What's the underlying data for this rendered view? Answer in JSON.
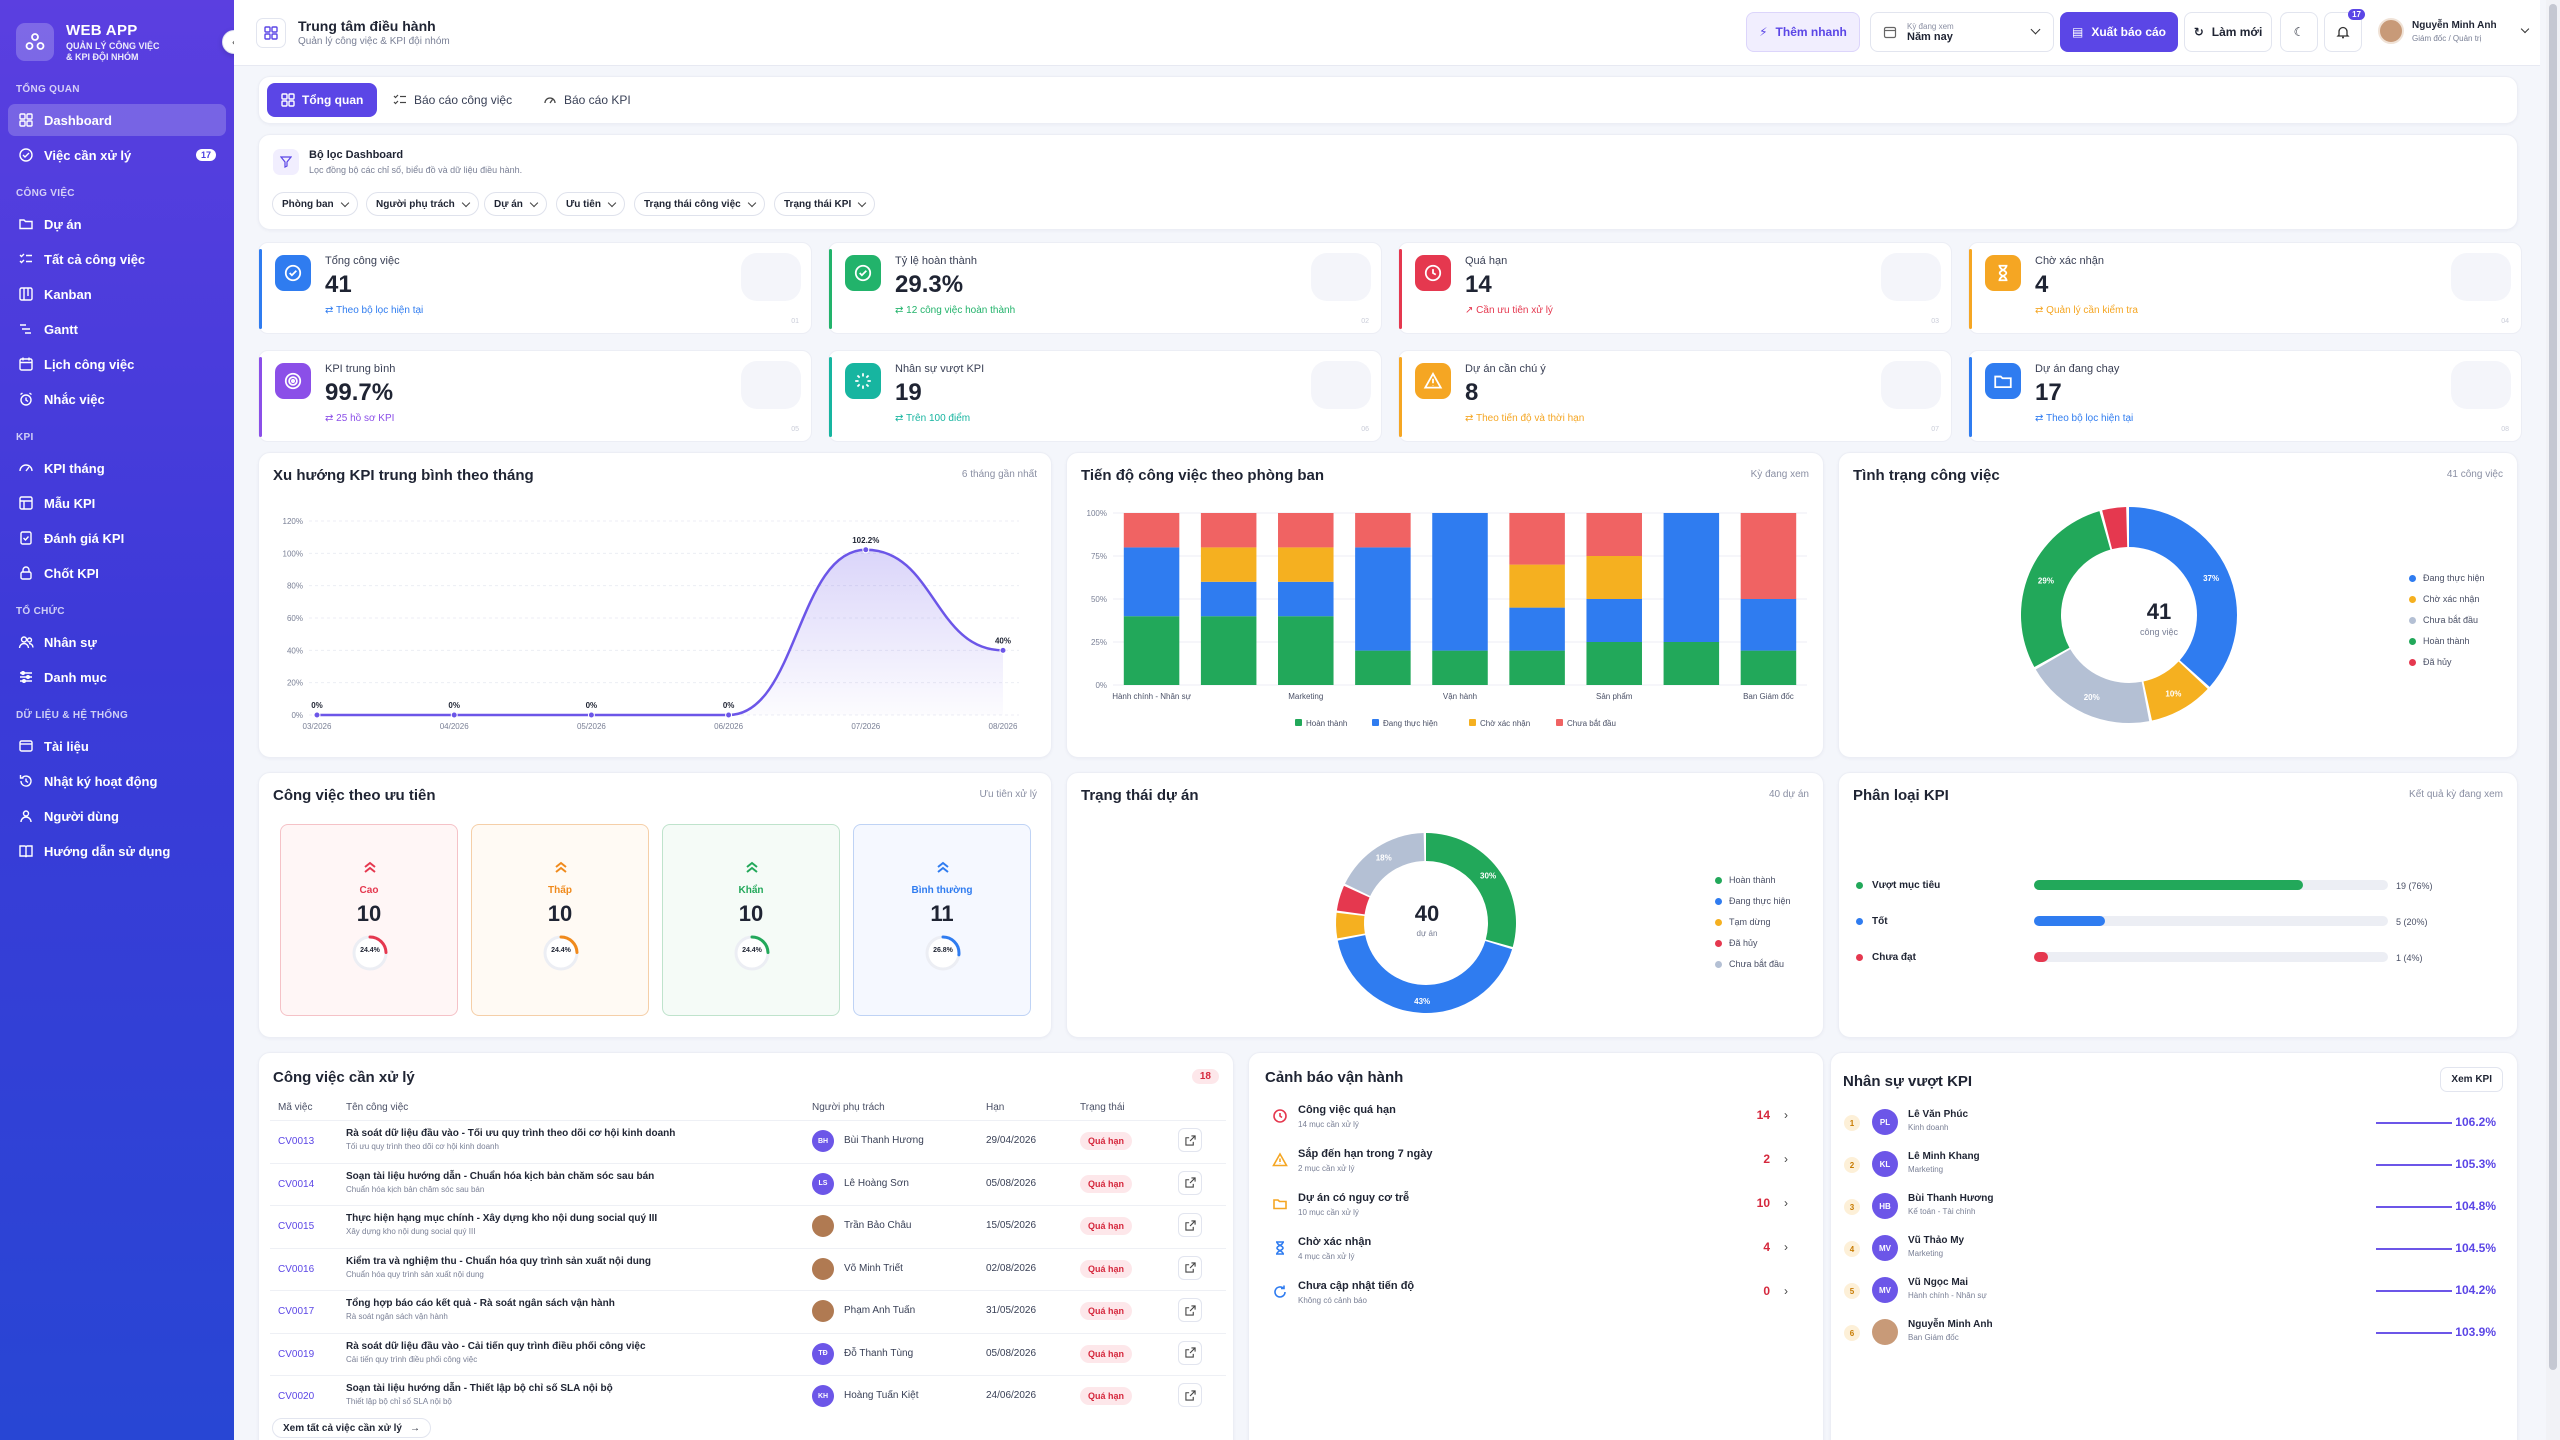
{
  "app": {
    "name": "WEB APP",
    "tagline": "QUẢN LÝ CÔNG VIỆC\n& KPI ĐỘI NHÓM"
  },
  "sidebar": {
    "sections": [
      {
        "title": "TỔNG QUAN",
        "items": [
          {
            "label": "Dashboard",
            "icon": "grid-icon",
            "active": true
          },
          {
            "label": "Việc cần xử lý",
            "icon": "check-circle-icon",
            "badge": "17"
          }
        ]
      },
      {
        "title": "CÔNG VIỆC",
        "items": [
          {
            "label": "Dự án",
            "icon": "folder-icon"
          },
          {
            "label": "Tất cả công việc",
            "icon": "list-check-icon"
          },
          {
            "label": "Kanban",
            "icon": "kanban-icon"
          },
          {
            "label": "Gantt",
            "icon": "gantt-icon"
          },
          {
            "label": "Lịch công việc",
            "icon": "calendar-icon"
          },
          {
            "label": "Nhắc việc",
            "icon": "alarm-icon"
          }
        ]
      },
      {
        "title": "KPI",
        "items": [
          {
            "label": "KPI tháng",
            "icon": "gauge-icon"
          },
          {
            "label": "Mẫu KPI",
            "icon": "template-icon"
          },
          {
            "label": "Đánh giá KPI",
            "icon": "evaluate-icon"
          },
          {
            "label": "Chốt KPI",
            "icon": "lock-icon"
          }
        ]
      },
      {
        "title": "TỔ CHỨC",
        "items": [
          {
            "label": "Nhân sự",
            "icon": "users-icon"
          },
          {
            "label": "Danh mục",
            "icon": "sliders-icon"
          }
        ]
      },
      {
        "title": "DỮ LIỆU & HỆ THỐNG",
        "items": [
          {
            "label": "Tài liệu",
            "icon": "document-icon"
          },
          {
            "label": "Nhật ký hoạt động",
            "icon": "history-icon"
          },
          {
            "label": "Người dùng",
            "icon": "user-group-icon"
          },
          {
            "label": "Hướng dẫn sử dụng",
            "icon": "book-icon"
          }
        ]
      }
    ]
  },
  "header": {
    "title": "Trung tâm điều hành",
    "subtitle": "Quản lý công việc & KPI đội nhóm",
    "quick_label": "Thêm nhanh",
    "period_caption": "Kỳ đang xem",
    "period_value": "Năm nay",
    "export_label": "Xuất báo cáo",
    "refresh_label": "Làm mới",
    "notif_count": "17",
    "user_name": "Nguyễn Minh Anh",
    "user_role": "Giám đốc / Quản trị"
  },
  "tabs": [
    "Tổng quan",
    "Báo cáo công việc",
    "Báo cáo KPI"
  ],
  "filters": {
    "title": "Bộ lọc Dashboard",
    "subtitle": "Lọc đồng bộ các chỉ số, biểu đồ và dữ liệu điều hành.",
    "chips": [
      "Phòng ban",
      "Người phụ trách",
      "Dự án",
      "Ưu tiên",
      "Trạng thái công việc",
      "Trạng thái KPI"
    ]
  },
  "stats": [
    {
      "label": "Tổng công việc",
      "value": "41",
      "sub": "Theo bộ lọc hiện tại",
      "num": "01",
      "color": "#2f7cf0",
      "icon": "check-badge-icon"
    },
    {
      "label": "Tỷ lệ hoàn thành",
      "value": "29.3%",
      "sub": "12 công việc hoàn thành",
      "num": "02",
      "color": "#22b36b",
      "icon": "check-circle-icon"
    },
    {
      "label": "Quá hạn",
      "value": "14",
      "sub": "Cần ưu tiên xử lý",
      "num": "03",
      "color": "#e5384f",
      "icon": "clock-icon"
    },
    {
      "label": "Chờ xác nhận",
      "value": "4",
      "sub": "Quản lý cần kiểm tra",
      "num": "04",
      "color": "#f5a623",
      "icon": "hourglass-icon"
    },
    {
      "label": "KPI trung bình",
      "value": "99.7%",
      "sub": "25 hồ sơ KPI",
      "num": "05",
      "color": "#8b4fe8",
      "icon": "target-icon"
    },
    {
      "label": "Nhân sự vượt KPI",
      "value": "19",
      "sub": "Trên 100 điểm",
      "num": "06",
      "color": "#17b5a0",
      "icon": "sparkle-icon"
    },
    {
      "label": "Dự án cần chú ý",
      "value": "8",
      "sub": "Theo tiến độ và thời hạn",
      "num": "07",
      "color": "#f5a623",
      "icon": "warning-icon"
    },
    {
      "label": "Dự án đang chạy",
      "value": "17",
      "sub": "Theo bộ lọc hiện tại",
      "num": "08",
      "color": "#2f7cf0",
      "icon": "folder-open-icon"
    }
  ],
  "kpi_trend": {
    "title": "Xu hướng KPI trung bình theo tháng",
    "note": "6 tháng gần nhất",
    "chart_data": {
      "type": "area",
      "x": [
        "03/2026",
        "04/2026",
        "05/2026",
        "06/2026",
        "07/2026",
        "08/2026"
      ],
      "values": [
        0,
        0,
        0,
        0,
        102.2,
        40
      ],
      "point_labels": [
        "0%",
        "0%",
        "0%",
        "0%",
        "102.2%",
        "40%"
      ],
      "yticks": [
        "0%",
        "20%",
        "40%",
        "60%",
        "80%",
        "100%",
        "120%"
      ],
      "ylim": [
        0,
        120
      ],
      "color": "#6c56e8"
    }
  },
  "dept_progress": {
    "title": "Tiến độ công việc theo phòng ban",
    "note": "Kỳ đang xem",
    "chart_data": {
      "type": "bar",
      "stacked": true,
      "percent": true,
      "categories": [
        "Hành chính - Nhân sự",
        "",
        "Marketing",
        "",
        "Vận hành",
        "",
        "Sản phẩm",
        "",
        "Ban Giám đốc"
      ],
      "yticks": [
        "0%",
        "25%",
        "50%",
        "75%",
        "100%"
      ],
      "series": [
        {
          "name": "Hoàn thành",
          "color": "#22a85a",
          "values": [
            40,
            40,
            40,
            20,
            20,
            20,
            25,
            25,
            20
          ]
        },
        {
          "name": "Đang thực hiện",
          "color": "#2f7cf0",
          "values": [
            40,
            20,
            20,
            60,
            80,
            25,
            25,
            75,
            30
          ]
        },
        {
          "name": "Chờ xác nhận",
          "color": "#f5b020",
          "values": [
            0,
            20,
            20,
            0,
            0,
            25,
            25,
            0,
            0
          ]
        },
        {
          "name": "Chưa bắt đầu",
          "color": "#f06363",
          "values": [
            20,
            20,
            20,
            20,
            0,
            30,
            25,
            0,
            50
          ]
        }
      ]
    }
  },
  "task_status": {
    "title": "Tình trạng công việc",
    "note": "41 công việc",
    "center_value": "41",
    "center_label": "công việc",
    "chart_data": {
      "type": "pie",
      "labels": [
        "Đang thực hiện",
        "Chờ xác nhận",
        "Chưa bắt đầu",
        "Hoàn thành",
        "Đã hủy"
      ],
      "values": [
        37,
        10,
        20,
        29,
        4
      ],
      "slice_labels": [
        "37%",
        "10%",
        "20%",
        "29%",
        ""
      ],
      "colors": [
        "#2f7cf0",
        "#f5b020",
        "#b4c0d4",
        "#22a85a",
        "#e5384f"
      ]
    }
  },
  "priority": {
    "title": "Công việc theo ưu tiên",
    "note": "Ưu tiên xử lý",
    "items": [
      {
        "label": "Cao",
        "value": "10",
        "pct": "24.4%",
        "ratio": 0.244,
        "color": "#e5384f",
        "bg": "#fff6f6",
        "border": "#f5c2c7",
        "icon": "double-chevron-up-icon"
      },
      {
        "label": "Thấp",
        "value": "10",
        "pct": "24.4%",
        "ratio": 0.244,
        "color": "#f08a1c",
        "bg": "#fffaf4",
        "border": "#f5cfa8",
        "icon": "double-chevron-up-icon"
      },
      {
        "label": "Khẩn",
        "value": "10",
        "pct": "24.4%",
        "ratio": 0.244,
        "color": "#22a85a",
        "bg": "#f5fbf7",
        "border": "#bfe3cc",
        "icon": "double-chevron-up-icon"
      },
      {
        "label": "Bình thường",
        "value": "11",
        "pct": "26.8%",
        "ratio": 0.268,
        "color": "#2f7cf0",
        "bg": "#f5f8ff",
        "border": "#bfd3f5",
        "icon": "double-chevron-up-icon"
      }
    ]
  },
  "project_status": {
    "title": "Trạng thái dự án",
    "note": "40 dự án",
    "center_value": "40",
    "center_label": "dự án",
    "chart_data": {
      "type": "pie",
      "labels": [
        "Hoàn thành",
        "Đang thực hiện",
        "Tạm dừng",
        "Đã hủy",
        "Chưa bắt đầu"
      ],
      "values": [
        30,
        43,
        5,
        5,
        18
      ],
      "slice_labels": [
        "30%",
        "43%",
        "",
        "",
        "18%"
      ],
      "colors": [
        "#22a85a",
        "#2f7cf0",
        "#f5b020",
        "#e5384f",
        "#b4c0d4"
      ]
    }
  },
  "kpi_class": {
    "title": "Phân loại KPI",
    "note": "Kết quả kỳ đang xem",
    "items": [
      {
        "label": "Vượt mục tiêu",
        "count": "19 (76%)",
        "ratio": 0.76,
        "color": "#22a85a"
      },
      {
        "label": "Tốt",
        "count": "5 (20%)",
        "ratio": 0.2,
        "color": "#2f7cf0"
      },
      {
        "label": "Chưa đạt",
        "count": "1 (4%)",
        "ratio": 0.04,
        "color": "#e5384f"
      }
    ]
  },
  "pending": {
    "title": "Công việc cần xử lý",
    "count": "18",
    "headers": [
      "Mã việc",
      "Tên công việc",
      "Người phụ trách",
      "Hạn",
      "Trạng thái"
    ],
    "rows": [
      {
        "code": "CV0013",
        "name": "Rà soát dữ liệu đầu vào - Tối ưu quy trình theo dõi cơ hội kinh doanh",
        "desc": "Tối ưu quy trình theo dõi cơ hội kinh doanh",
        "initials": "BH",
        "person": "Bùi Thanh Hương",
        "due": "29/04/2026",
        "status": "Quá hạn",
        "avatar_color": "#6c56e8"
      },
      {
        "code": "CV0014",
        "name": "Soạn tài liệu hướng dẫn - Chuẩn hóa kịch bản chăm sóc sau bán",
        "desc": "Chuẩn hóa kịch bản chăm sóc sau bán",
        "initials": "LS",
        "person": "Lê Hoàng Sơn",
        "due": "05/08/2026",
        "status": "Quá hạn",
        "avatar_color": "#6c56e8"
      },
      {
        "code": "CV0015",
        "name": "Thực hiện hạng mục chính - Xây dựng kho nội dung social quý III",
        "desc": "Xây dựng kho nội dung social quý III",
        "initials": "",
        "person": "Trần Bảo Châu",
        "due": "15/05/2026",
        "status": "Quá hạn",
        "avatar_color": "#b07a52"
      },
      {
        "code": "CV0016",
        "name": "Kiểm tra và nghiệm thu - Chuẩn hóa quy trình sản xuất nội dung",
        "desc": "Chuẩn hóa quy trình sản xuất nội dung",
        "initials": "",
        "person": "Võ Minh Triết",
        "due": "02/08/2026",
        "status": "Quá hạn",
        "avatar_color": "#b07a52"
      },
      {
        "code": "CV0017",
        "name": "Tổng hợp báo cáo kết quả - Rà soát ngân sách vận hành",
        "desc": "Rà soát ngân sách vận hành",
        "initials": "",
        "person": "Phạm Anh Tuấn",
        "due": "31/05/2026",
        "status": "Quá hạn",
        "avatar_color": "#b07a52"
      },
      {
        "code": "CV0019",
        "name": "Rà soát dữ liệu đầu vào - Cải tiến quy trình điều phối công việc",
        "desc": "Cải tiến quy trình điều phối công việc",
        "initials": "TĐ",
        "person": "Đỗ Thanh Tùng",
        "due": "05/08/2026",
        "status": "Quá hạn",
        "avatar_color": "#6c56e8"
      },
      {
        "code": "CV0020",
        "name": "Soạn tài liệu hướng dẫn - Thiết lập bộ chỉ số SLA nội bộ",
        "desc": "Thiết lập bộ chỉ số SLA nội bộ",
        "initials": "KH",
        "person": "Hoàng Tuấn Kiệt",
        "due": "24/06/2026",
        "status": "Quá hạn",
        "avatar_color": "#6c56e8"
      }
    ],
    "view_all": "Xem tất cả việc cần xử lý"
  },
  "alerts": {
    "title": "Cảnh báo vận hành",
    "items": [
      {
        "title": "Công việc quá hạn",
        "sub": "14 mục cần xử lý",
        "value": "14",
        "icon": "clock-icon",
        "color": "#e5384f"
      },
      {
        "title": "Sắp đến hạn trong 7 ngày",
        "sub": "2 mục cần xử lý",
        "value": "2",
        "icon": "warning-icon",
        "color": "#f5a623"
      },
      {
        "title": "Dự án có nguy cơ trễ",
        "sub": "10 mục cần xử lý",
        "value": "10",
        "icon": "folder-icon",
        "color": "#f5a623"
      },
      {
        "title": "Chờ xác nhận",
        "sub": "4 mục cần xử lý",
        "value": "4",
        "icon": "hourglass-icon",
        "color": "#2f7cf0"
      },
      {
        "title": "Chưa cập nhật tiến độ",
        "sub": "Không có cảnh báo",
        "value": "0",
        "icon": "refresh-icon",
        "color": "#2f7cf0"
      }
    ]
  },
  "top_kpi": {
    "title": "Nhân sự vượt KPI",
    "button": "Xem KPI",
    "items": [
      {
        "rank": "1",
        "initials": "PL",
        "name": "Lê Văn Phúc",
        "dept": "Kinh doanh",
        "value": "106.2%"
      },
      {
        "rank": "2",
        "initials": "KL",
        "name": "Lê Minh Khang",
        "dept": "Marketing",
        "value": "105.3%"
      },
      {
        "rank": "3",
        "initials": "HB",
        "name": "Bùi Thanh Hương",
        "dept": "Kế toán - Tài chính",
        "value": "104.8%"
      },
      {
        "rank": "4",
        "initials": "MV",
        "name": "Vũ Thảo My",
        "dept": "Marketing",
        "value": "104.5%"
      },
      {
        "rank": "5",
        "initials": "MV",
        "name": "Vũ Ngọc Mai",
        "dept": "Hành chính - Nhân sự",
        "value": "104.2%"
      },
      {
        "rank": "6",
        "initials": "",
        "name": "Nguyễn Minh Anh",
        "dept": "Ban Giám đốc",
        "value": "103.9%"
      }
    ]
  }
}
